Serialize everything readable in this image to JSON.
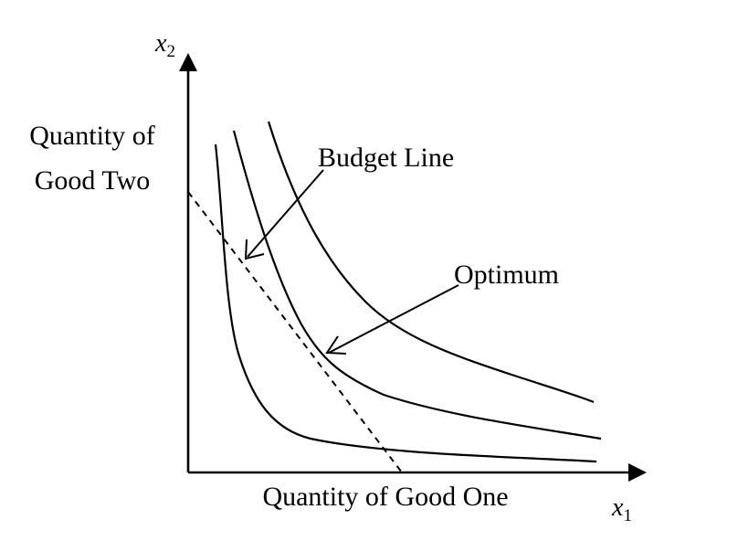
{
  "axes": {
    "y_variable": "x",
    "y_subscript": "2",
    "x_variable": "x",
    "x_subscript": "1",
    "y_label_line1": "Quantity of",
    "y_label_line2": "Good Two",
    "x_label": "Quantity of Good One"
  },
  "annotations": {
    "budget_line": "Budget Line",
    "optimum": "Optimum"
  },
  "curves": {
    "indifference_curve_count": 3,
    "budget_line_style": "dashed"
  }
}
